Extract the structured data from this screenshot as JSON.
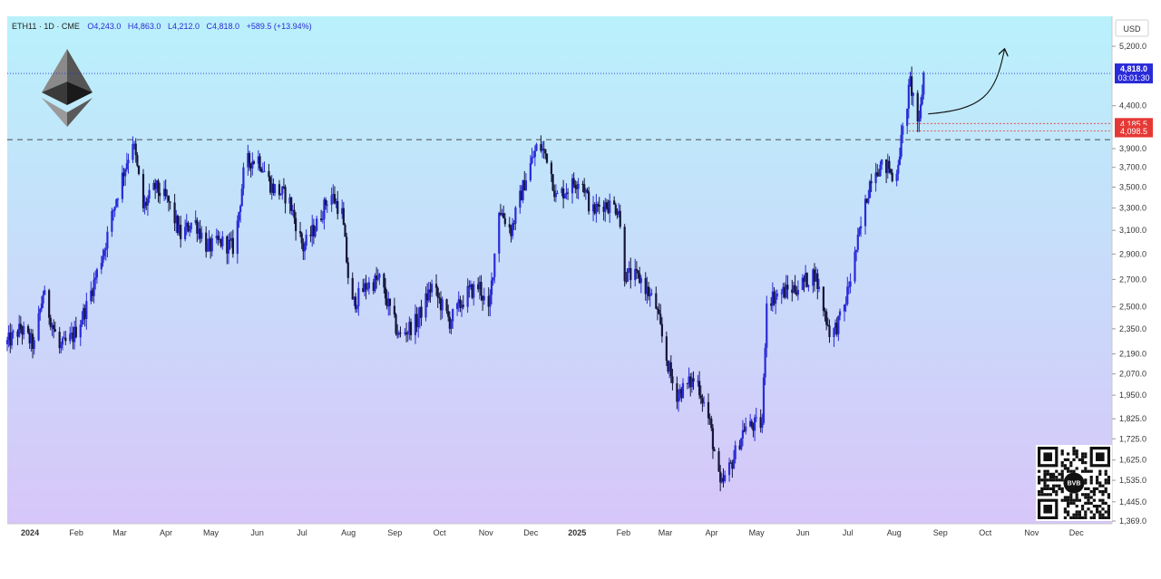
{
  "header": {
    "symbol": "ETH11 · 1D · CME",
    "open": "O4,243.0",
    "high": "H4,863.0",
    "low": "L4,212.0",
    "close": "C4,818.0",
    "change": "+589.5 (+13.94%)"
  },
  "currency_label": "USD",
  "badges": {
    "last_price": "4,818.0",
    "countdown": "03:01:30",
    "level_a": "4,185.5",
    "level_b": "4,098.5"
  },
  "colors": {
    "up": "#2a2bd8",
    "down": "#16163a",
    "accent_blue": "#2a2bd8",
    "badge_red": "#e53935",
    "grad_top": "#b9f1fb",
    "grad_bottom": "#d7c6f9"
  },
  "icons": [
    "ethereum-logo-icon",
    "qr-code-icon"
  ],
  "qr_label": "BVB",
  "chart_data": {
    "type": "candlestick",
    "title": "",
    "y_scale": "log",
    "ylim": [
      1369,
      5600
    ],
    "y_ticks": [
      {
        "value": 5200,
        "label": "5,200.0"
      },
      {
        "value": 4400,
        "label": "4,400.0"
      },
      {
        "value": 3900,
        "label": "3,900.0"
      },
      {
        "value": 3700,
        "label": "3,700.0"
      },
      {
        "value": 3500,
        "label": "3,500.0"
      },
      {
        "value": 3300,
        "label": "3,300.0"
      },
      {
        "value": 3100,
        "label": "3,100.0"
      },
      {
        "value": 2900,
        "label": "2,900.0"
      },
      {
        "value": 2700,
        "label": "2,700.0"
      },
      {
        "value": 2500,
        "label": "2,500.0"
      },
      {
        "value": 2350,
        "label": "2,350.0"
      },
      {
        "value": 2190,
        "label": "2,190.0"
      },
      {
        "value": 2070,
        "label": "2,070.0"
      },
      {
        "value": 1950,
        "label": "1,950.0"
      },
      {
        "value": 1825,
        "label": "1,825.0"
      },
      {
        "value": 1725,
        "label": "1,725.0"
      },
      {
        "value": 1625,
        "label": "1,625.0"
      },
      {
        "value": 1535,
        "label": "1,535.0"
      },
      {
        "value": 1445,
        "label": "1,445.0"
      },
      {
        "value": 1369,
        "label": "1,369.0"
      }
    ],
    "x_range": [
      "2023-12-18",
      "2025-12-26"
    ],
    "x_ticks": [
      {
        "date": "2024-01-01",
        "label": "2024",
        "bold": true
      },
      {
        "date": "2024-02-01",
        "label": "Feb"
      },
      {
        "date": "2024-03-01",
        "label": "Mar"
      },
      {
        "date": "2024-04-01",
        "label": "Apr"
      },
      {
        "date": "2024-05-01",
        "label": "May"
      },
      {
        "date": "2024-06-01",
        "label": "Jun"
      },
      {
        "date": "2024-07-01",
        "label": "Jul"
      },
      {
        "date": "2024-08-01",
        "label": "Aug"
      },
      {
        "date": "2024-09-01",
        "label": "Sep"
      },
      {
        "date": "2024-10-01",
        "label": "Oct"
      },
      {
        "date": "2024-11-01",
        "label": "Nov"
      },
      {
        "date": "2024-12-01",
        "label": "Dec"
      },
      {
        "date": "2025-01-01",
        "label": "2025",
        "bold": true
      },
      {
        "date": "2025-02-01",
        "label": "Feb"
      },
      {
        "date": "2025-03-01",
        "label": "Mar"
      },
      {
        "date": "2025-04-01",
        "label": "Apr"
      },
      {
        "date": "2025-05-01",
        "label": "May"
      },
      {
        "date": "2025-06-01",
        "label": "Jun"
      },
      {
        "date": "2025-07-01",
        "label": "Jul"
      },
      {
        "date": "2025-08-01",
        "label": "Aug"
      },
      {
        "date": "2025-09-01",
        "label": "Sep"
      },
      {
        "date": "2025-10-01",
        "label": "Oct"
      },
      {
        "date": "2025-11-01",
        "label": "Nov"
      },
      {
        "date": "2025-12-01",
        "label": "Dec"
      }
    ],
    "series": [
      {
        "date": "2023-12-18",
        "price": 2250
      },
      {
        "date": "2023-12-28",
        "price": 2350
      },
      {
        "date": "2024-01-06",
        "price": 2240
      },
      {
        "date": "2024-01-12",
        "price": 2600
      },
      {
        "date": "2024-01-23",
        "price": 2220
      },
      {
        "date": "2024-02-01",
        "price": 2300
      },
      {
        "date": "2024-02-10",
        "price": 2500
      },
      {
        "date": "2024-02-22",
        "price": 2950
      },
      {
        "date": "2024-03-01",
        "price": 3400
      },
      {
        "date": "2024-03-12",
        "price": 4000
      },
      {
        "date": "2024-03-19",
        "price": 3300
      },
      {
        "date": "2024-03-27",
        "price": 3500
      },
      {
        "date": "2024-04-05",
        "price": 3350
      },
      {
        "date": "2024-04-13",
        "price": 3050
      },
      {
        "date": "2024-04-22",
        "price": 3200
      },
      {
        "date": "2024-05-01",
        "price": 2950
      },
      {
        "date": "2024-05-10",
        "price": 3000
      },
      {
        "date": "2024-05-19",
        "price": 2950
      },
      {
        "date": "2024-05-26",
        "price": 3750
      },
      {
        "date": "2024-06-04",
        "price": 3800
      },
      {
        "date": "2024-06-13",
        "price": 3500
      },
      {
        "date": "2024-06-24",
        "price": 3400
      },
      {
        "date": "2024-07-04",
        "price": 2950
      },
      {
        "date": "2024-07-13",
        "price": 3150
      },
      {
        "date": "2024-07-22",
        "price": 3450
      },
      {
        "date": "2024-07-30",
        "price": 3250
      },
      {
        "date": "2024-08-05",
        "price": 2500
      },
      {
        "date": "2024-08-15",
        "price": 2650
      },
      {
        "date": "2024-08-24",
        "price": 2700
      },
      {
        "date": "2024-09-06",
        "price": 2300
      },
      {
        "date": "2024-09-18",
        "price": 2400
      },
      {
        "date": "2024-09-28",
        "price": 2650
      },
      {
        "date": "2024-10-10",
        "price": 2400
      },
      {
        "date": "2024-10-22",
        "price": 2600
      },
      {
        "date": "2024-10-30",
        "price": 2650
      },
      {
        "date": "2024-11-05",
        "price": 2450
      },
      {
        "date": "2024-11-12",
        "price": 3300
      },
      {
        "date": "2024-11-20",
        "price": 3100
      },
      {
        "date": "2024-11-30",
        "price": 3600
      },
      {
        "date": "2024-12-08",
        "price": 3950
      },
      {
        "date": "2024-12-15",
        "price": 3800
      },
      {
        "date": "2024-12-20",
        "price": 3400
      },
      {
        "date": "2025-01-06",
        "price": 3600
      },
      {
        "date": "2025-01-13",
        "price": 3250
      },
      {
        "date": "2025-01-20",
        "price": 3350
      },
      {
        "date": "2025-01-31",
        "price": 3300
      },
      {
        "date": "2025-02-03",
        "price": 2750
      },
      {
        "date": "2025-02-15",
        "price": 2700
      },
      {
        "date": "2025-02-25",
        "price": 2500
      },
      {
        "date": "2025-03-03",
        "price": 2200
      },
      {
        "date": "2025-03-10",
        "price": 1950
      },
      {
        "date": "2025-03-24",
        "price": 2050
      },
      {
        "date": "2025-04-02",
        "price": 1800
      },
      {
        "date": "2025-04-09",
        "price": 1500
      },
      {
        "date": "2025-04-16",
        "price": 1600
      },
      {
        "date": "2025-04-25",
        "price": 1780
      },
      {
        "date": "2025-05-07",
        "price": 1800
      },
      {
        "date": "2025-05-10",
        "price": 2550
      },
      {
        "date": "2025-05-20",
        "price": 2600
      },
      {
        "date": "2025-06-01",
        "price": 2650
      },
      {
        "date": "2025-06-11",
        "price": 2750
      },
      {
        "date": "2025-06-22",
        "price": 2300
      },
      {
        "date": "2025-06-30",
        "price": 2450
      },
      {
        "date": "2025-07-10",
        "price": 3000
      },
      {
        "date": "2025-07-20",
        "price": 3700
      },
      {
        "date": "2025-07-31",
        "price": 3700
      },
      {
        "date": "2025-08-03",
        "price": 3500
      },
      {
        "date": "2025-08-10",
        "price": 4200
      },
      {
        "date": "2025-08-14",
        "price": 4700
      },
      {
        "date": "2025-08-20",
        "price": 4150
      },
      {
        "date": "2025-08-23",
        "price": 4818
      }
    ],
    "horizontal_levels": [
      {
        "value": 4000,
        "style": "dashed"
      },
      {
        "value": 4818,
        "style": "dotted"
      },
      {
        "value": 4185.5,
        "style": "dotted"
      },
      {
        "value": 4098.5,
        "style": "dotted"
      }
    ],
    "projection_arrow": {
      "from": {
        "date": "2025-08-25",
        "price": 4300
      },
      "to": {
        "date": "2025-10-15",
        "price": 5150
      }
    }
  }
}
